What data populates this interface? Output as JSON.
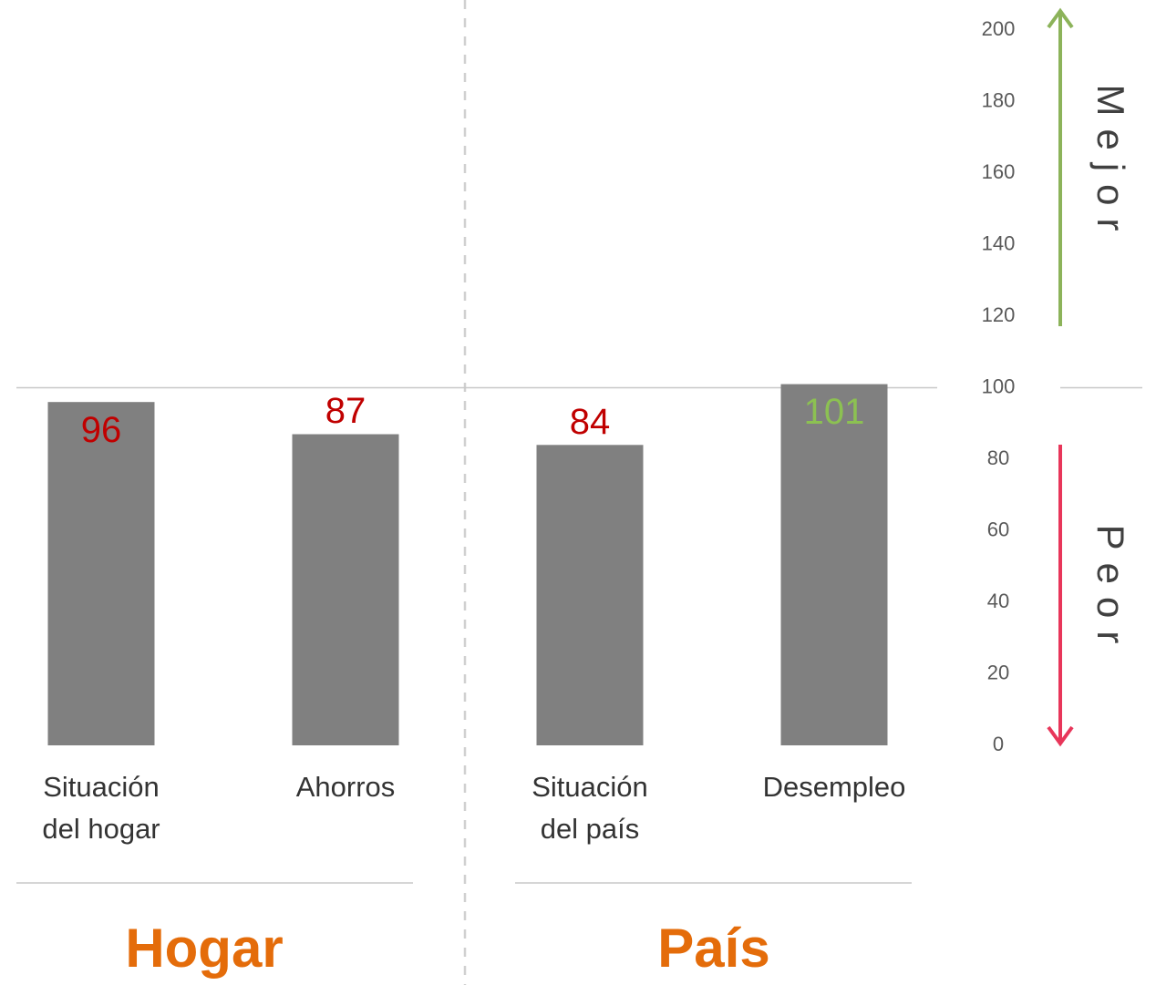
{
  "chart_data": {
    "type": "bar",
    "categories": [
      [
        "Situación",
        "del hogar"
      ],
      [
        "Ahorros"
      ],
      [
        "Situación",
        "del país"
      ],
      [
        "Desempleo"
      ]
    ],
    "values": [
      96,
      87,
      84,
      101
    ],
    "color": "#808080",
    "value_label_colors": [
      "#c00000",
      "#c00000",
      "#c00000",
      "#8cc152"
    ],
    "ylim": [
      0,
      200
    ],
    "yticks": [
      0,
      20,
      40,
      60,
      80,
      100,
      120,
      140,
      160,
      180,
      200
    ],
    "reference": 100,
    "groups": [
      {
        "label": "Hogar",
        "color": "#e46c0a"
      },
      {
        "label": "País",
        "color": "#e46c0a"
      }
    ],
    "annotations": [
      {
        "text": "Mejor",
        "color": "#8cb35a"
      },
      {
        "text": "Peor",
        "color": "#e8365a"
      }
    ]
  }
}
